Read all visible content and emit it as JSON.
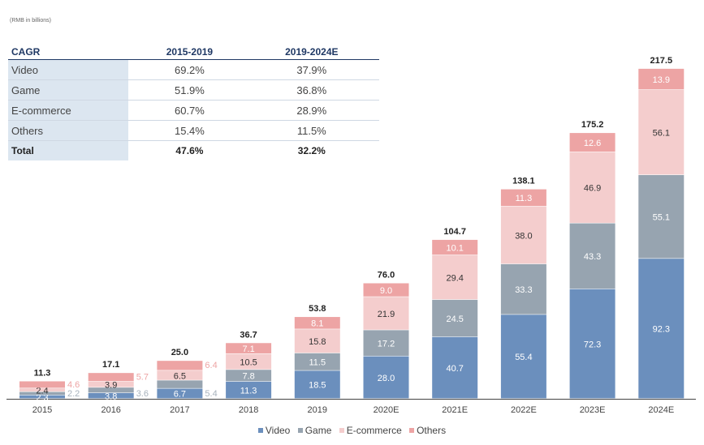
{
  "unit_note": "(RMB in billions)",
  "cagr_table": {
    "headers": [
      "CAGR",
      "2015-2019",
      "2019-2024E"
    ],
    "rows": [
      [
        "Video",
        "69.2%",
        "37.9%"
      ],
      [
        "Game",
        "51.9%",
        "36.8%"
      ],
      [
        "E-commerce",
        "60.7%",
        "28.9%"
      ],
      [
        "Others",
        "15.4%",
        "11.5%"
      ]
    ],
    "total": [
      "Total",
      "47.6%",
      "32.2%"
    ]
  },
  "colors": {
    "video": "#6b8fbd",
    "game": "#97a4b0",
    "ecommerce": "#f4cdcd",
    "others": "#eda4a4"
  },
  "chart_data": {
    "type": "bar",
    "stacked": true,
    "categories": [
      "2015",
      "2016",
      "2017",
      "2018",
      "2019",
      "2020E",
      "2021E",
      "2022E",
      "2023E",
      "2024E"
    ],
    "series": [
      {
        "name": "Video",
        "values": [
          2.3,
          3.8,
          6.7,
          11.3,
          18.5,
          28.0,
          40.7,
          55.4,
          72.3,
          92.3
        ],
        "labels": [
          "2.3",
          "3.8",
          "6.7",
          "11.3",
          "18.5",
          "28.0",
          "40.7",
          "55.4",
          "72.3",
          "92.3"
        ]
      },
      {
        "name": "Game",
        "values": [
          2.2,
          3.6,
          5.4,
          7.8,
          11.5,
          17.2,
          24.5,
          33.3,
          43.3,
          55.1
        ],
        "labels": [
          "2.2",
          "3.6",
          "5.4",
          "7.8",
          "11.5",
          "17.2",
          "24.5",
          "33.3",
          "43.3",
          "55.1"
        ]
      },
      {
        "name": "E-commerce",
        "values": [
          2.4,
          3.9,
          6.5,
          10.5,
          15.8,
          21.9,
          29.4,
          38.0,
          46.9,
          56.1
        ],
        "labels": [
          "2.4",
          "3.9",
          "6.5",
          "10.5",
          "15.8",
          "21.9",
          "29.4",
          "38.0",
          "46.9",
          "56.1"
        ]
      },
      {
        "name": "Others",
        "values": [
          4.6,
          5.7,
          6.4,
          7.1,
          8.1,
          9.0,
          10.1,
          11.3,
          12.6,
          13.9
        ],
        "labels": [
          "4.6",
          "5.7",
          "6.4",
          "7.1",
          "8.1",
          "9.0",
          "10.1",
          "11.3",
          "12.6",
          "13.9"
        ]
      }
    ],
    "totals": [
      "11.3",
      "17.1",
      "25.0",
      "36.7",
      "53.8",
      "76.0",
      "104.7",
      "138.1",
      "175.2",
      "217.5"
    ],
    "ylim": [
      0,
      220
    ],
    "legend": [
      "Video",
      "Game",
      "E-commerce",
      "Others"
    ],
    "legend_position": "bottom"
  }
}
